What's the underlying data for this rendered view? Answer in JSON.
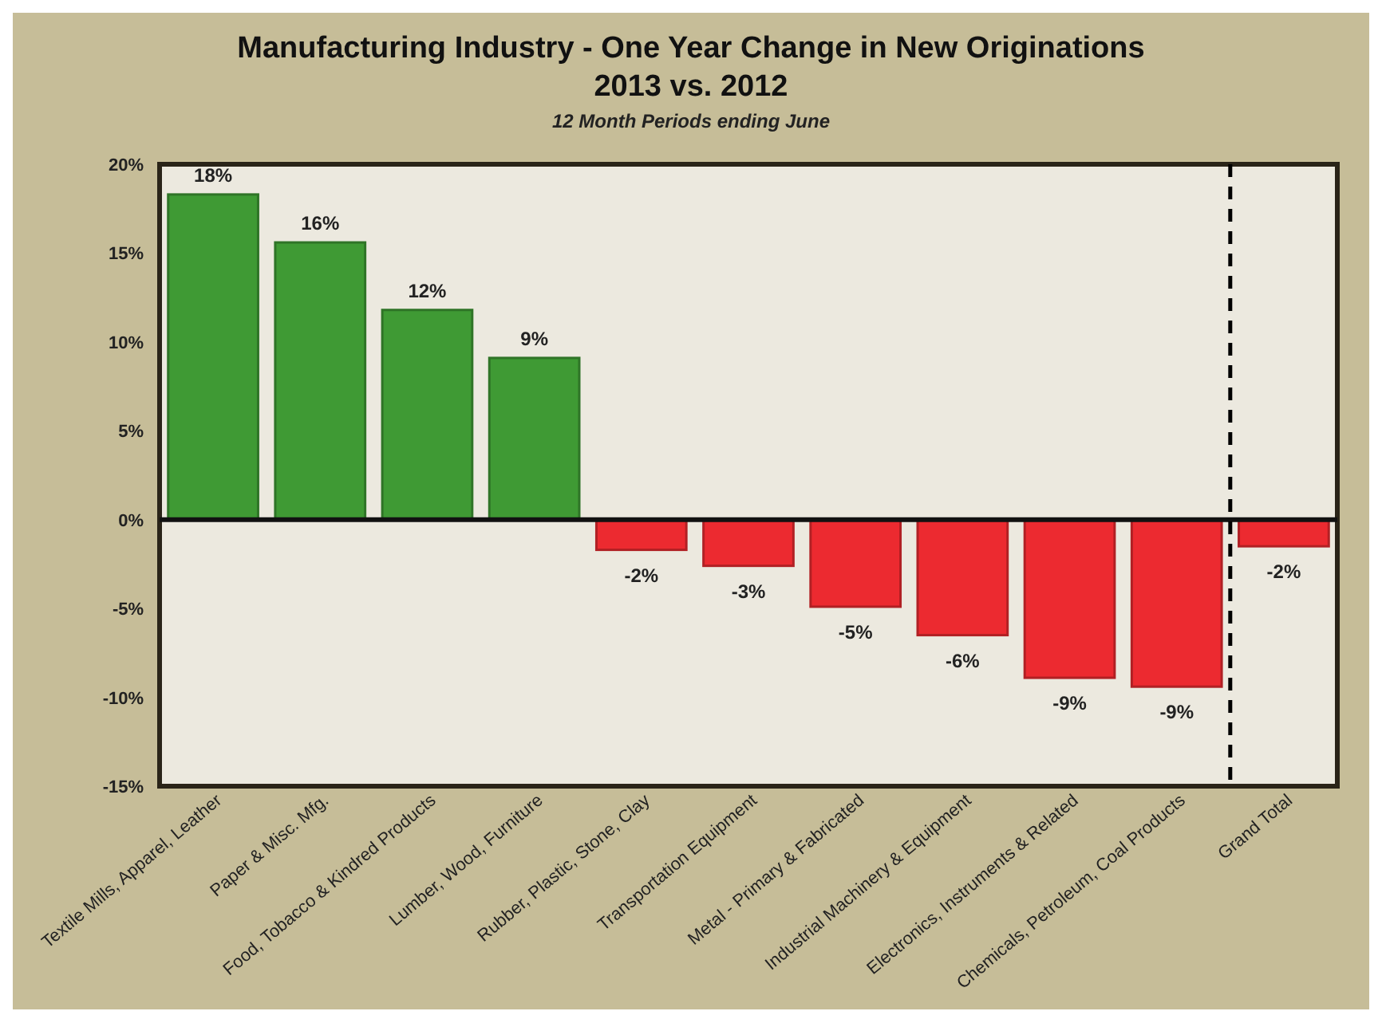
{
  "chart_data": {
    "type": "bar",
    "title": "Manufacturing Industry - One Year Change in New Originations 2013 vs. 2012",
    "subtitle": "12 Month Periods ending June",
    "categories": [
      "Textile Mills, Apparel, Leather",
      "Paper & Misc. Mfg.",
      "Food, Tobacco & Kindred Products",
      "Lumber, Wood, Furniture",
      "Rubber, Plastic, Stone, Clay",
      "Transportation Equipment",
      "Metal - Primary & Fabricated",
      "Industrial Machinery & Equipment",
      "Electronics, Instruments & Related",
      "Chemicals, Petroleum, Coal Products",
      "Grand Total"
    ],
    "values": [
      18.3,
      15.6,
      11.8,
      9.1,
      -1.7,
      -2.6,
      -4.9,
      -6.5,
      -8.9,
      -9.4,
      -1.5
    ],
    "value_labels": [
      "18%",
      "16%",
      "12%",
      "9%",
      "-2%",
      "-3%",
      "-5%",
      "-6%",
      "-9%",
      "-9%",
      "-2%"
    ],
    "colors": [
      "#3f9a34",
      "#3f9a34",
      "#3f9a34",
      "#3f9a34",
      "#ec2a30",
      "#ec2a30",
      "#ec2a30",
      "#ec2a30",
      "#ec2a30",
      "#ec2a30",
      "#ec2a30"
    ],
    "ylim": [
      -15,
      20
    ],
    "yticks": [
      {
        "value": -15,
        "label": "-15%"
      },
      {
        "value": -10,
        "label": "-10%"
      },
      {
        "value": -5,
        "label": "-5%"
      },
      {
        "value": 0,
        "label": "0%"
      },
      {
        "value": 5,
        "label": "5%"
      },
      {
        "value": 10,
        "label": "10%"
      },
      {
        "value": 15,
        "label": "15%"
      },
      {
        "value": 20,
        "label": "20%"
      }
    ],
    "orientation": "vertical"
  }
}
